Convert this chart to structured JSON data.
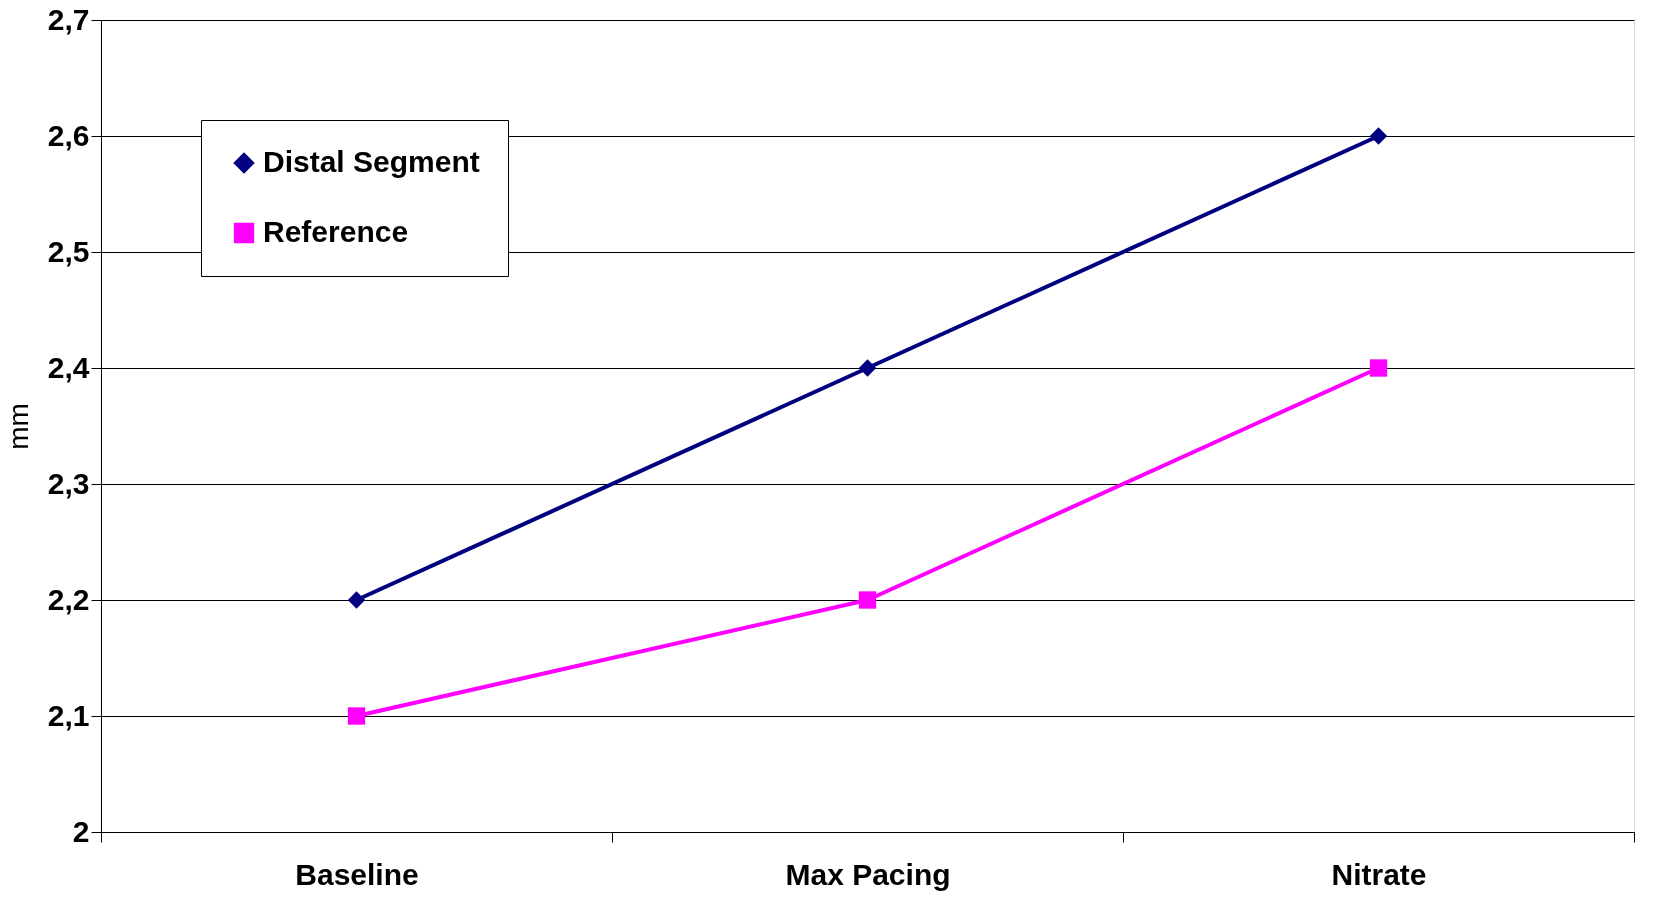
{
  "chart_data": {
    "type": "line",
    "ylabel": "mm",
    "categories": [
      "Baseline",
      "Max Pacing",
      "Nitrate"
    ],
    "series": [
      {
        "name": "Distal Segment",
        "color": "#000080",
        "marker": "diamond",
        "values": [
          2.2,
          2.4,
          2.6
        ]
      },
      {
        "name": "Reference",
        "color": "#ff00ff",
        "marker": "square",
        "values": [
          2.1,
          2.2,
          2.4
        ]
      }
    ],
    "ylim": [
      2,
      2.7
    ],
    "yticks": [
      2,
      {
        "value": 2.1,
        "label": "2,1"
      },
      {
        "value": 2.2,
        "label": "2,2"
      },
      {
        "value": 2.3,
        "label": "2,3"
      },
      {
        "value": 2.4,
        "label": "2,4"
      },
      {
        "value": 2.5,
        "label": "2,5"
      },
      {
        "value": 2.6,
        "label": "2,6"
      },
      {
        "value": 2.7,
        "label": "2,7"
      }
    ],
    "grid": "y",
    "legend": "top left",
    "line_style": "solid"
  }
}
